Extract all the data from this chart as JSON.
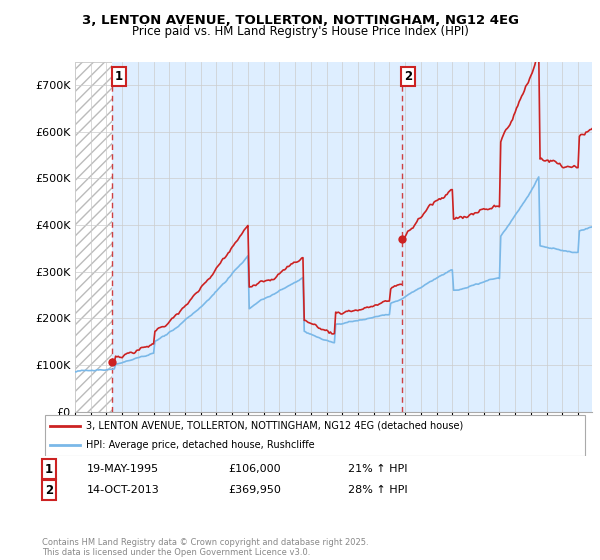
{
  "title_line1": "3, LENTON AVENUE, TOLLERTON, NOTTINGHAM, NG12 4EG",
  "title_line2": "Price paid vs. HM Land Registry's House Price Index (HPI)",
  "ylim": [
    0,
    750000
  ],
  "yticks": [
    0,
    100000,
    200000,
    300000,
    400000,
    500000,
    600000,
    700000
  ],
  "ytick_labels": [
    "£0",
    "£100K",
    "£200K",
    "£300K",
    "£400K",
    "£500K",
    "£600K",
    "£700K"
  ],
  "xlim_start": 1993.0,
  "xlim_end": 2025.9,
  "hpi_color": "#7ab8e8",
  "price_color": "#cc2222",
  "marker1_date": 1995.38,
  "marker1_price": 106000,
  "marker2_date": 2013.79,
  "marker2_price": 369950,
  "dashed_line1_x": 1995.38,
  "dashed_line2_x": 2013.79,
  "legend_label1": "3, LENTON AVENUE, TOLLERTON, NOTTINGHAM, NG12 4EG (detached house)",
  "legend_label2": "HPI: Average price, detached house, Rushcliffe",
  "annotation1_label": "1",
  "annotation2_label": "2",
  "copyright_text": "Contains HM Land Registry data © Crown copyright and database right 2025.\nThis data is licensed under the Open Government Licence v3.0."
}
